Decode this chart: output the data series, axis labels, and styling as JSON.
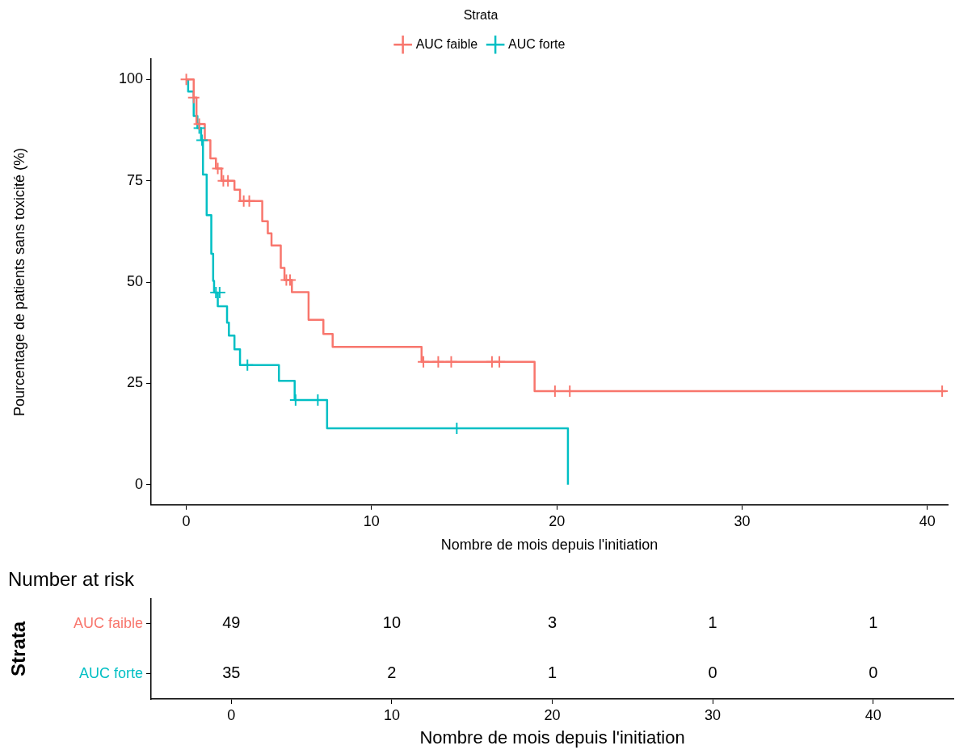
{
  "chart_data": [
    {
      "type": "step",
      "xlabel": "Nombre de mois depuis l'initiation",
      "ylabel": "Pourcentage de patients sans toxicité (%)",
      "legend_title": "Strata",
      "legend": "top",
      "xlim": [
        -1.9,
        41.1
      ],
      "xticks": [
        0,
        10,
        20,
        30,
        40
      ],
      "ylim": [
        -5,
        105
      ],
      "yticks": [
        0,
        25,
        50,
        75,
        100
      ],
      "line_style": "solid",
      "series": [
        {
          "name": "AUC faible",
          "color": "#f8766d",
          "type": "step",
          "x": [
            0,
            0.4,
            0.55,
            1.0,
            1.3,
            1.6,
            1.9,
            2.6,
            2.9,
            4.1,
            4.4,
            4.6,
            5.1,
            5.3,
            5.7,
            6.6,
            7.4,
            7.9,
            12.7,
            18.8,
            41
          ],
          "values": [
            100,
            95.5,
            89,
            85,
            80.5,
            78,
            75,
            72.8,
            70,
            65,
            62,
            59,
            53.5,
            50.5,
            47.5,
            40.7,
            37.2,
            34,
            30.3,
            23.1,
            23.1
          ]
        },
        {
          "name": "AUC forte",
          "color": "#00bfc4",
          "type": "step",
          "x": [
            0,
            0.1,
            0.4,
            0.6,
            0.8,
            0.9,
            1.1,
            1.35,
            1.45,
            1.5,
            1.7,
            2.2,
            2.3,
            2.6,
            2.9,
            5.0,
            5.85,
            7.6,
            20.6
          ],
          "values": [
            100,
            97,
            91,
            88,
            85,
            76.5,
            66.5,
            57,
            50.3,
            47.4,
            44,
            40,
            36.8,
            33.4,
            29.5,
            25.6,
            20.9,
            13.9,
            0
          ]
        },
        {
          "color": "#f8766d",
          "type": "scatter",
          "marker": "cross",
          "x": [
            0,
            0.4,
            0.7,
            1.7,
            2.0,
            2.25,
            3.1,
            3.4,
            5.4,
            5.6,
            12.8,
            13.6,
            14.3,
            16.5,
            16.9,
            19.9,
            20.7,
            40.8
          ],
          "values": [
            100,
            95.5,
            89,
            78,
            75,
            75,
            70,
            70,
            50.5,
            50.5,
            30.3,
            30.3,
            30.3,
            30.3,
            30.3,
            23.1,
            23.1,
            23.1
          ]
        },
        {
          "color": "#00bfc4",
          "type": "scatter",
          "marker": "cross",
          "x": [
            0.7,
            0.85,
            1.6,
            1.8,
            3.3,
            5.9,
            7.1,
            14.6
          ],
          "values": [
            88,
            85,
            47.4,
            47.4,
            29.5,
            20.9,
            20.9,
            13.9
          ]
        }
      ]
    },
    {
      "type": "heatmap",
      "title": "Number at risk",
      "xlabel": "Nombre de mois depuis l'initiation",
      "ylabel": "Strata",
      "categories": [
        "0",
        "10",
        "20",
        "30",
        "40"
      ],
      "data_labels": true,
      "y_categories": [
        "AUC faible",
        "AUC forte"
      ],
      "colors": [
        "#f8766d",
        "#00bfc4"
      ],
      "cells": [
        [
          49,
          10,
          3,
          1,
          1
        ],
        [
          35,
          2,
          1,
          0,
          0
        ]
      ]
    }
  ]
}
